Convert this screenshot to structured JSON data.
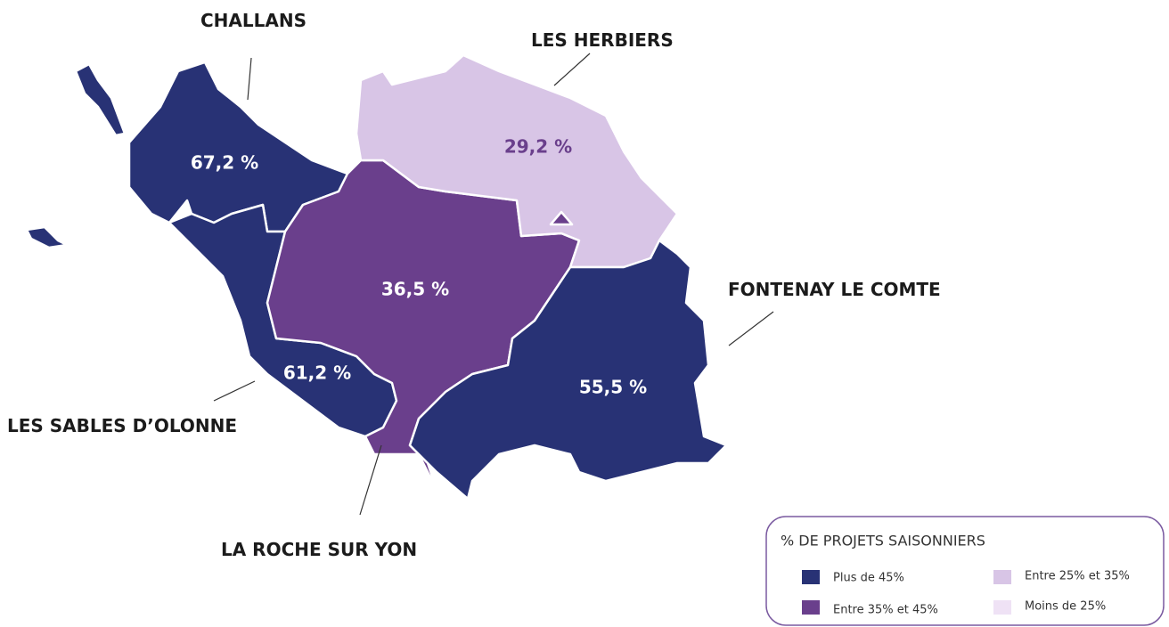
{
  "regions": [
    {
      "name": "CHALLANS",
      "value": "67,2 %",
      "color": "#283275"
    },
    {
      "name": "LES HERBIERS",
      "value": "29,2 %",
      "color": "#d8c5e6"
    },
    {
      "name": "LA ROCHE SUR YON",
      "value": "36,5 %",
      "color": "#6a3f8c"
    },
    {
      "name": "LES SABLES D’OLONNE",
      "value": "61,2 %",
      "color": "#283275"
    },
    {
      "name": "FONTENAY LE COMTE",
      "value": "55,5 %",
      "color": "#283275"
    }
  ],
  "legend": {
    "title": "% DE PROJETS SAISONNIERS",
    "items": [
      {
        "label": "Plus de 45%",
        "color": "#283275"
      },
      {
        "label": "Entre 35% et 45%",
        "color": "#6a3f8c"
      },
      {
        "label": "Entre 25% et 35%",
        "color": "#d8c5e6"
      },
      {
        "label": "Moins de 25%",
        "color": "#efe2f5"
      }
    ]
  }
}
